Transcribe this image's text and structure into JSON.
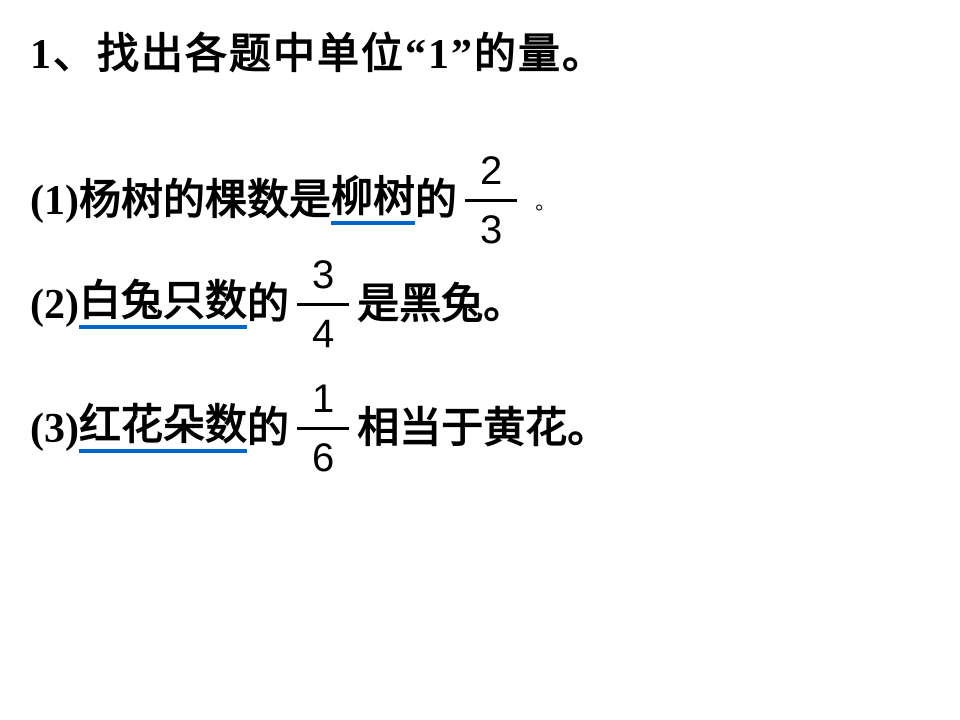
{
  "title": {
    "prefix": "1",
    "text1": "、找出各题中单位",
    "quote_open": "“",
    "one": "1",
    "quote_close": "”",
    "text2": "的量。"
  },
  "items": [
    {
      "label": "(1)",
      "before_underline": "杨树的棵数是",
      "underlined": "柳树",
      "after_underline": "的",
      "fraction": {
        "num": "2",
        "den": "3"
      },
      "suffix": "",
      "period": "。"
    },
    {
      "label": "(2)",
      "before_underline": "",
      "underlined": "白兔只数",
      "after_underline": "的",
      "fraction": {
        "num": "3",
        "den": "4"
      },
      "suffix": "是黑兔。",
      "period": ""
    },
    {
      "label": "(3)",
      "before_underline": "",
      "underlined": "红花朵数",
      "after_underline": "的",
      "fraction": {
        "num": "1",
        "den": "6"
      },
      "suffix": "相当于黄花。",
      "period": ""
    }
  ],
  "style": {
    "text_color": "#000000",
    "underline_color": "#0066cc",
    "background": "#ffffff",
    "main_fontsize": 42,
    "fraction_fontsize": 40
  }
}
